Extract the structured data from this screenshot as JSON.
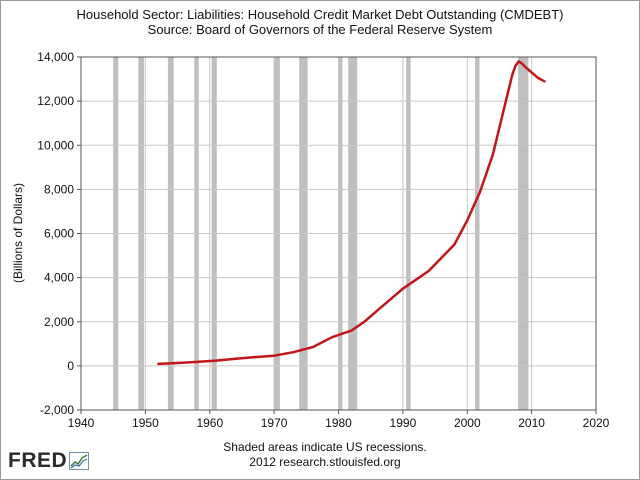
{
  "header": {
    "title": "Household Sector: Liabilities: Household Credit Market Debt Outstanding (CMDEBT)",
    "source": "Source: Board of Governors of the Federal Reserve System"
  },
  "footer": {
    "note": "Shaded areas indicate US recessions.",
    "credit": "2012 research.stlouisfed.org"
  },
  "logo": {
    "text": "FRED",
    "icon": "fred-graph-icon"
  },
  "colors": {
    "series": "#c0161a",
    "recession": "#bfbfbf",
    "grid": "#c8c8c8",
    "axis": "#555555"
  },
  "chart_data": {
    "type": "line",
    "title": "Household Sector: Liabilities: Household Credit Market Debt Outstanding (CMDEBT)",
    "subtitle": "Source: Board of Governors of the Federal Reserve System",
    "xlabel": "",
    "ylabel": "(Billions of Dollars)",
    "xlim": [
      1940,
      2020
    ],
    "ylim": [
      -2000,
      14000
    ],
    "x_ticks": [
      1940,
      1950,
      1960,
      1970,
      1980,
      1990,
      2000,
      2010,
      2020
    ],
    "x_tick_labels": [
      "1940",
      "1950",
      "1960",
      "1970",
      "1980",
      "1990",
      "2000",
      "2010",
      "2020"
    ],
    "y_ticks": [
      -2000,
      0,
      2000,
      4000,
      6000,
      8000,
      10000,
      12000,
      14000
    ],
    "y_tick_labels": [
      "-2,000",
      "0",
      "2,000",
      "4,000",
      "6,000",
      "8,000",
      "10,000",
      "12,000",
      "14,000"
    ],
    "grid": true,
    "recessions": [
      [
        1945.0,
        1945.8
      ],
      [
        1948.9,
        1949.8
      ],
      [
        1953.5,
        1954.4
      ],
      [
        1957.6,
        1958.3
      ],
      [
        1960.3,
        1961.1
      ],
      [
        1969.9,
        1970.9
      ],
      [
        1973.9,
        1975.2
      ],
      [
        1980.0,
        1980.6
      ],
      [
        1981.5,
        1982.9
      ],
      [
        1990.5,
        1991.2
      ],
      [
        2001.2,
        2001.9
      ],
      [
        2007.9,
        2009.5
      ]
    ],
    "series": [
      {
        "name": "CMDEBT",
        "x": [
          1952,
          1955,
          1958,
          1961,
          1964,
          1967,
          1970,
          1973,
          1976,
          1979,
          1982,
          1984,
          1986,
          1988,
          1990,
          1992,
          1994,
          1996,
          1998,
          2000,
          2002,
          2004,
          2005,
          2006,
          2007,
          2007.5,
          2008,
          2008.5,
          2009,
          2010,
          2011,
          2012
        ],
        "values": [
          90,
          130,
          180,
          240,
          320,
          400,
          460,
          620,
          850,
          1300,
          1600,
          2000,
          2500,
          3000,
          3500,
          3900,
          4300,
          4900,
          5500,
          6600,
          7900,
          9600,
          10800,
          12000,
          13200,
          13600,
          13800,
          13700,
          13550,
          13300,
          13050,
          12900
        ]
      }
    ]
  }
}
